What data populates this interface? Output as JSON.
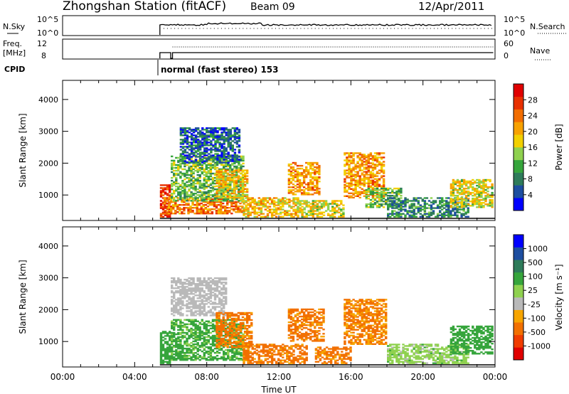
{
  "header": {
    "station_title": "Zhongshan Station (fitACF)",
    "beam": "Beam 09",
    "date": "12/Apr/2011"
  },
  "status_panels": {
    "nsky_label": "N.Sky",
    "nsky_ticks": [
      "10^5",
      "10^0"
    ],
    "nsearch_label": "N.Search",
    "nsearch_ticks": [
      "10^5",
      "10^0"
    ],
    "freq_label": "Freq.",
    "freq_unit": "[MHz]",
    "freq_ticks": [
      "12",
      "8"
    ],
    "nave_label": "Nave",
    "nave_ticks": [
      "60",
      "0"
    ],
    "cpid_label": "CPID",
    "cpid_value": "normal (fast stereo) 153"
  },
  "colors": {
    "power_scale": [
      "#0000ff",
      "#1d4ea0",
      "#2e7b5a",
      "#36a53c",
      "#8fd14f",
      "#f2d000",
      "#f7a100",
      "#f26d00",
      "#e83000",
      "#e00000"
    ],
    "velocity_scale": [
      "#e00000",
      "#f03c00",
      "#f27000",
      "#f7a500",
      "#b9b9b9",
      "#8fd14f",
      "#36a53c",
      "#2e7b5a",
      "#1d4ea0",
      "#0000ff"
    ]
  },
  "chart_data": [
    {
      "type": "heatmap",
      "name": "Power",
      "ylabel": "Slant Range [km]",
      "xlabel": "Time UT",
      "x_ticks": [
        "00:00",
        "04:00",
        "08:00",
        "12:00",
        "16:00",
        "20:00",
        "00:00"
      ],
      "y_ticks": [
        "1000",
        "2000",
        "3000",
        "4000"
      ],
      "ylim": [
        200,
        4600
      ],
      "xlim": [
        0,
        24
      ],
      "colorbar_label": "Power [dB]",
      "colorbar_ticks": [
        "4",
        "8",
        "12",
        "16",
        "20",
        "24",
        "28"
      ],
      "data_start_hour": 5.4,
      "regions": [
        {
          "t0": 5.4,
          "t1": 5.9,
          "r0": 300,
          "r1": 1300,
          "v": 28
        },
        {
          "t0": 5.6,
          "t1": 10.0,
          "r0": 400,
          "r1": 900,
          "v": 24
        },
        {
          "t0": 6.0,
          "t1": 10.0,
          "r0": 800,
          "r1": 2200,
          "v": 14
        },
        {
          "t0": 6.5,
          "t1": 9.8,
          "r0": 2000,
          "r1": 3100,
          "v": 8
        },
        {
          "t0": 8.5,
          "t1": 10.2,
          "r0": 900,
          "r1": 1800,
          "v": 20
        },
        {
          "t0": 10.0,
          "t1": 13.0,
          "r0": 300,
          "r1": 900,
          "v": 20
        },
        {
          "t0": 12.5,
          "t1": 14.2,
          "r0": 1000,
          "r1": 2000,
          "v": 22
        },
        {
          "t0": 13.0,
          "t1": 15.6,
          "r0": 300,
          "r1": 800,
          "v": 18
        },
        {
          "t0": 15.6,
          "t1": 17.8,
          "r0": 900,
          "r1": 2300,
          "v": 22
        },
        {
          "t0": 16.8,
          "t1": 18.8,
          "r0": 600,
          "r1": 1200,
          "v": 14
        },
        {
          "t0": 18.0,
          "t1": 22.5,
          "r0": 300,
          "r1": 900,
          "v": 10
        },
        {
          "t0": 21.5,
          "t1": 23.9,
          "r0": 600,
          "r1": 1500,
          "v": 18
        }
      ]
    },
    {
      "type": "heatmap",
      "name": "Velocity",
      "ylabel": "Slant Range [km]",
      "xlabel": "Time UT",
      "x_ticks": [
        "00:00",
        "04:00",
        "08:00",
        "12:00",
        "16:00",
        "20:00",
        "00:00"
      ],
      "y_ticks": [
        "1000",
        "2000",
        "3000",
        "4000"
      ],
      "ylim": [
        200,
        4600
      ],
      "xlim": [
        0,
        24
      ],
      "colorbar_label": "Velocity [m s⁻¹]",
      "colorbar_ticks": [
        "1000",
        "500",
        "100",
        "25",
        "-25",
        "-100",
        "-500",
        "-1000"
      ],
      "data_start_hour": 5.4,
      "regions": [
        {
          "t0": 5.4,
          "t1": 6.0,
          "r0": 300,
          "r1": 1300,
          "v": 300
        },
        {
          "t0": 6.0,
          "t1": 9.0,
          "r0": 1800,
          "r1": 3000,
          "v": 0
        },
        {
          "t0": 6.0,
          "t1": 10.0,
          "r0": 400,
          "r1": 1700,
          "v": 150
        },
        {
          "t0": 8.5,
          "t1": 10.5,
          "r0": 800,
          "r1": 1900,
          "v": -150
        },
        {
          "t0": 10.0,
          "t1": 13.5,
          "r0": 300,
          "r1": 900,
          "v": -150
        },
        {
          "t0": 12.5,
          "t1": 14.5,
          "r0": 1000,
          "r1": 2000,
          "v": -150
        },
        {
          "t0": 14.0,
          "t1": 16.0,
          "r0": 300,
          "r1": 800,
          "v": -150
        },
        {
          "t0": 15.6,
          "t1": 18.0,
          "r0": 900,
          "r1": 2300,
          "v": -120
        },
        {
          "t0": 18.0,
          "t1": 22.5,
          "r0": 300,
          "r1": 900,
          "v": 60
        },
        {
          "t0": 21.5,
          "t1": 23.9,
          "r0": 600,
          "r1": 1500,
          "v": 300
        }
      ]
    }
  ]
}
